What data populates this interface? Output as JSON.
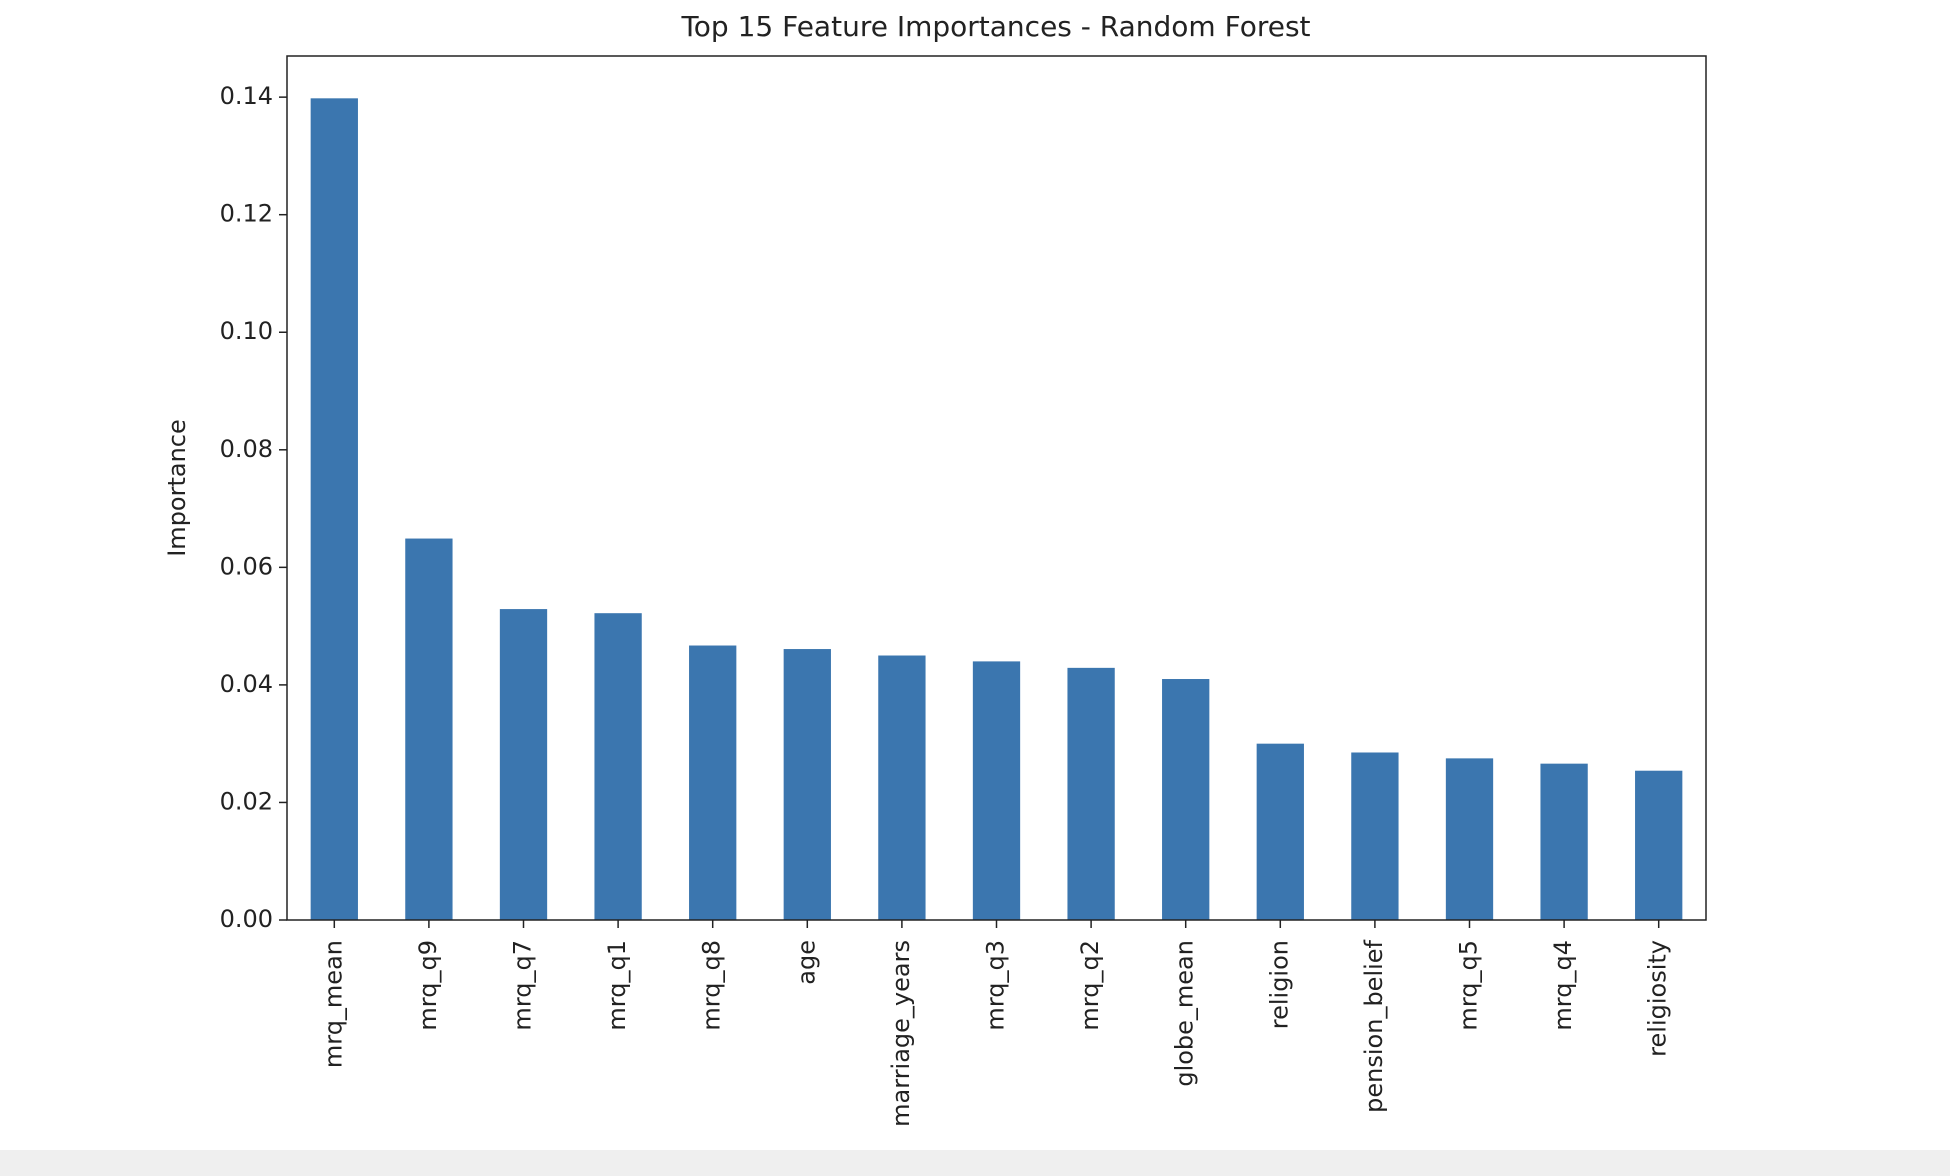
{
  "chart_data": {
    "type": "bar",
    "title": "Top 15 Feature Importances - Random Forest",
    "y_label": "Importance",
    "categories": [
      "mrq_mean",
      "mrq_q9",
      "mrq_q7",
      "mrq_q1",
      "mrq_q8",
      "age",
      "marriage_years",
      "mrq_q3",
      "mrq_q2",
      "globe_mean",
      "religion",
      "pension_belief",
      "mrq_q5",
      "mrq_q4",
      "religiosity"
    ],
    "values": [
      0.1398,
      0.0649,
      0.0529,
      0.0522,
      0.0467,
      0.0461,
      0.045,
      0.044,
      0.0429,
      0.041,
      0.03,
      0.0285,
      0.0275,
      0.0266,
      0.0254
    ],
    "color": "#3b76af",
    "ylim": [
      0,
      0.147
    ],
    "yticks": [
      {
        "value": 0,
        "label": "0.00"
      },
      {
        "value": 0.02,
        "label": "0.02"
      },
      {
        "value": 0.04,
        "label": "0.04"
      },
      {
        "value": 0.06,
        "label": "0.06"
      },
      {
        "value": 0.08,
        "label": "0.08"
      },
      {
        "value": 0.1,
        "label": "0.10"
      },
      {
        "value": 0.12,
        "label": "0.12"
      },
      {
        "value": 0.14,
        "label": "0.14"
      }
    ],
    "grid": false
  }
}
